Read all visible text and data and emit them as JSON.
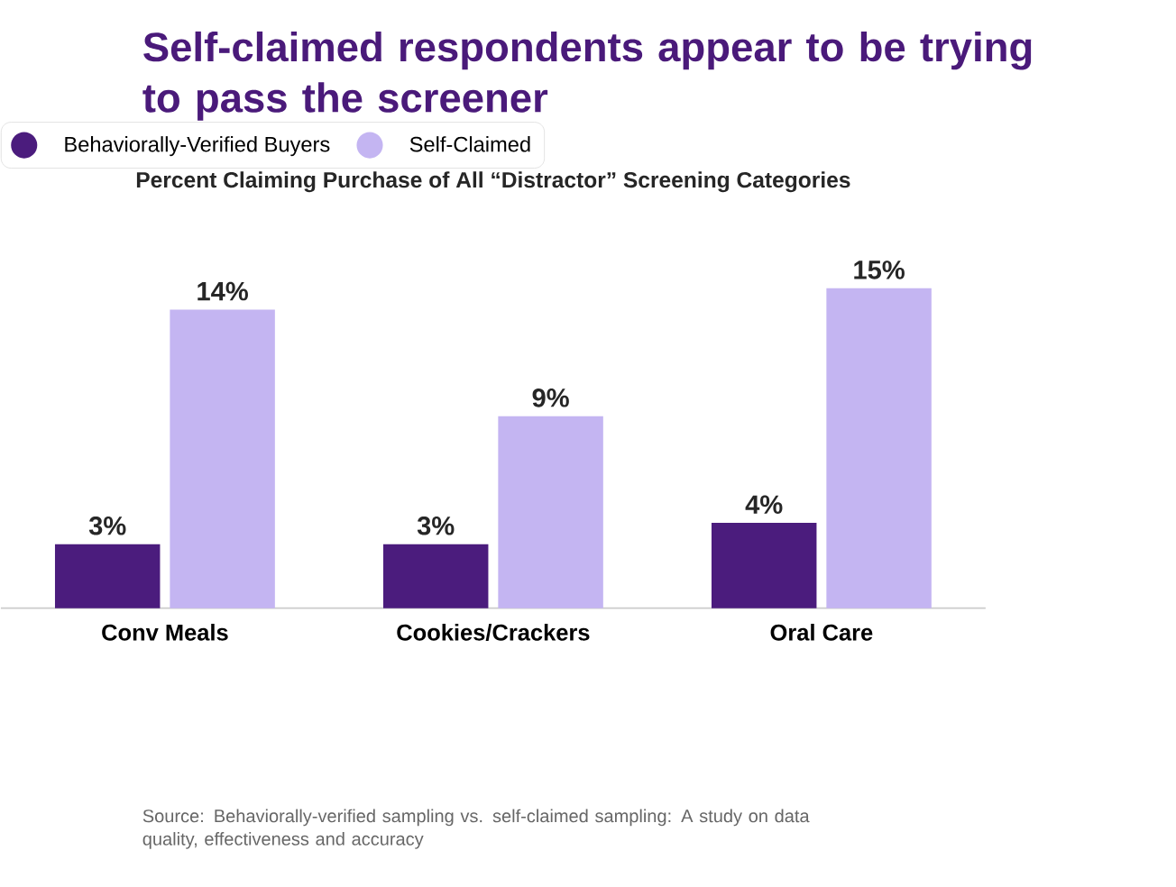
{
  "chart_data": {
    "type": "bar",
    "title": "Self-claimed respondents appear to be trying to pass the screener",
    "subtitle": "Percent Claiming Purchase of All  “Distractor” Screening Categories",
    "categories": [
      "Conv Meals",
      "Cookies/Crackers",
      "Oral Care"
    ],
    "series": [
      {
        "name": "Behaviorally-Verified Buyers",
        "color": "#4b1c7d",
        "values": [
          3,
          3,
          4
        ],
        "value_labels": [
          "3%",
          "3%",
          "4%"
        ]
      },
      {
        "name": "Self-Claimed",
        "color": "#c4b5f2",
        "values": [
          14,
          9,
          15
        ],
        "value_labels": [
          "14%",
          "9%",
          "15%"
        ]
      }
    ],
    "legend": "top left",
    "annotations": [
      "Source: Behaviorally-verified sampling vs. self-claimed sampling: A study on data quality, effectiveness and accuracy"
    ]
  }
}
